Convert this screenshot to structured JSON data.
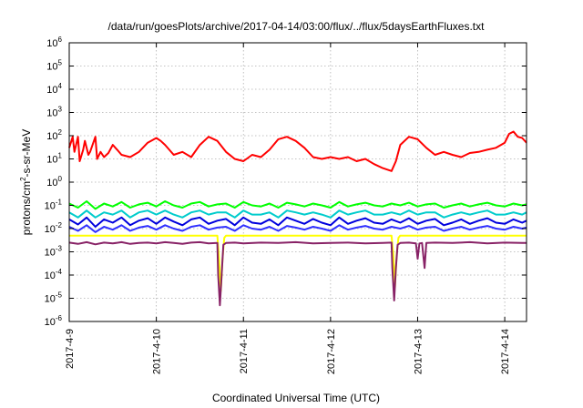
{
  "chart_data": {
    "type": "line",
    "title": "/data/run/goesPlots/archive/2017-04-14/03:00/flux/../flux/5daysEarthFluxes.txt",
    "xlabel": "Coordinated Universal Time (UTC)",
    "ylabel": {
      "prefix": "protons/cm",
      "sup": "2",
      "suffix": "-s-sr-MeV"
    },
    "x_ticks": [
      "2017-4-9",
      "2017-4-10",
      "2017-4-11",
      "2017-4-12",
      "2017-4-13",
      "2017-4-14"
    ],
    "x_range_days": [
      0,
      5.25
    ],
    "y_scale": "log",
    "ylim": [
      1e-06,
      1000000.0
    ],
    "y_ticks": [
      {
        "base": "10",
        "exp": "-6"
      },
      {
        "base": "10",
        "exp": "-5"
      },
      {
        "base": "10",
        "exp": "-4"
      },
      {
        "base": "10",
        "exp": "-3"
      },
      {
        "base": "10",
        "exp": "-2"
      },
      {
        "base": "10",
        "exp": "-1"
      },
      {
        "base": "10",
        "exp": "0"
      },
      {
        "base": "10",
        "exp": "1"
      },
      {
        "base": "10",
        "exp": "2"
      },
      {
        "base": "10",
        "exp": "3"
      },
      {
        "base": "10",
        "exp": "4"
      },
      {
        "base": "10",
        "exp": "5"
      },
      {
        "base": "10",
        "exp": "6"
      }
    ],
    "grid": true,
    "series": [
      {
        "color": "#ff0000",
        "x": [
          0.0,
          0.04,
          0.06,
          0.1,
          0.12,
          0.16,
          0.18,
          0.22,
          0.24,
          0.3,
          0.32,
          0.36,
          0.4,
          0.45,
          0.5,
          0.55,
          0.6,
          0.7,
          0.8,
          0.9,
          1.0,
          1.05,
          1.1,
          1.2,
          1.3,
          1.4,
          1.5,
          1.6,
          1.7,
          1.8,
          1.9,
          2.0,
          2.1,
          2.2,
          2.3,
          2.4,
          2.5,
          2.6,
          2.7,
          2.8,
          2.9,
          3.0,
          3.1,
          3.2,
          3.3,
          3.4,
          3.5,
          3.6,
          3.7,
          3.75,
          3.8,
          3.9,
          4.0,
          4.1,
          4.2,
          4.3,
          4.4,
          4.5,
          4.6,
          4.7,
          4.8,
          4.9,
          5.0,
          5.05,
          5.1,
          5.15,
          5.2,
          5.25
        ],
        "y": [
          30,
          90,
          20,
          90,
          8,
          25,
          60,
          15,
          20,
          90,
          10,
          20,
          12,
          18,
          40,
          25,
          15,
          12,
          20,
          50,
          80,
          60,
          40,
          15,
          20,
          12,
          40,
          90,
          60,
          20,
          10,
          8,
          15,
          12,
          25,
          70,
          90,
          60,
          30,
          12,
          10,
          12,
          10,
          12,
          8,
          10,
          6,
          4,
          3,
          8,
          40,
          90,
          70,
          30,
          15,
          20,
          15,
          12,
          18,
          20,
          25,
          30,
          50,
          120,
          150,
          90,
          80,
          50
        ]
      },
      {
        "color": "#00ff00",
        "x": [
          0.0,
          0.1,
          0.2,
          0.3,
          0.4,
          0.5,
          0.6,
          0.7,
          0.8,
          0.9,
          1.0,
          1.1,
          1.2,
          1.3,
          1.4,
          1.5,
          1.6,
          1.7,
          1.8,
          1.9,
          2.0,
          2.1,
          2.2,
          2.3,
          2.4,
          2.5,
          2.6,
          2.7,
          2.8,
          2.9,
          3.0,
          3.1,
          3.2,
          3.3,
          3.4,
          3.5,
          3.6,
          3.7,
          3.8,
          3.9,
          4.0,
          4.1,
          4.2,
          4.3,
          4.4,
          4.5,
          4.6,
          4.7,
          4.8,
          4.9,
          5.0,
          5.1,
          5.2,
          5.25
        ],
        "y": [
          0.12,
          0.08,
          0.15,
          0.07,
          0.12,
          0.09,
          0.14,
          0.08,
          0.11,
          0.13,
          0.09,
          0.15,
          0.1,
          0.08,
          0.12,
          0.14,
          0.09,
          0.11,
          0.12,
          0.08,
          0.14,
          0.1,
          0.09,
          0.12,
          0.08,
          0.13,
          0.11,
          0.09,
          0.12,
          0.1,
          0.08,
          0.14,
          0.09,
          0.11,
          0.13,
          0.1,
          0.09,
          0.12,
          0.1,
          0.13,
          0.09,
          0.11,
          0.12,
          0.08,
          0.1,
          0.12,
          0.09,
          0.11,
          0.13,
          0.1,
          0.09,
          0.12,
          0.1,
          0.11
        ]
      },
      {
        "color": "#00cccc",
        "x": [
          0.0,
          0.1,
          0.2,
          0.3,
          0.4,
          0.5,
          0.6,
          0.7,
          0.8,
          0.9,
          1.0,
          1.1,
          1.2,
          1.3,
          1.4,
          1.5,
          1.6,
          1.7,
          1.8,
          1.9,
          2.0,
          2.1,
          2.2,
          2.3,
          2.4,
          2.5,
          2.6,
          2.7,
          2.8,
          2.9,
          3.0,
          3.1,
          3.2,
          3.3,
          3.4,
          3.5,
          3.6,
          3.7,
          3.8,
          3.9,
          4.0,
          4.1,
          4.2,
          4.3,
          4.4,
          4.5,
          4.6,
          4.7,
          4.8,
          4.9,
          5.0,
          5.1,
          5.2,
          5.25
        ],
        "y": [
          0.05,
          0.03,
          0.06,
          0.03,
          0.05,
          0.04,
          0.06,
          0.03,
          0.05,
          0.06,
          0.04,
          0.06,
          0.04,
          0.03,
          0.05,
          0.06,
          0.04,
          0.05,
          0.05,
          0.03,
          0.06,
          0.04,
          0.04,
          0.05,
          0.03,
          0.06,
          0.05,
          0.04,
          0.05,
          0.04,
          0.03,
          0.06,
          0.04,
          0.05,
          0.06,
          0.04,
          0.04,
          0.05,
          0.04,
          0.06,
          0.04,
          0.05,
          0.05,
          0.03,
          0.04,
          0.05,
          0.04,
          0.05,
          0.06,
          0.04,
          0.04,
          0.05,
          0.04,
          0.05
        ]
      },
      {
        "color": "#0000dd",
        "x": [
          0.0,
          0.1,
          0.2,
          0.3,
          0.4,
          0.5,
          0.6,
          0.7,
          0.8,
          0.9,
          1.0,
          1.1,
          1.2,
          1.3,
          1.4,
          1.5,
          1.6,
          1.7,
          1.8,
          1.9,
          2.0,
          2.1,
          2.2,
          2.3,
          2.4,
          2.5,
          2.6,
          2.7,
          2.8,
          2.9,
          3.0,
          3.1,
          3.2,
          3.3,
          3.4,
          3.5,
          3.6,
          3.7,
          3.8,
          3.9,
          4.0,
          4.1,
          4.2,
          4.3,
          4.4,
          4.5,
          4.6,
          4.7,
          4.8,
          4.9,
          5.0,
          5.1,
          5.2,
          5.25
        ],
        "y": [
          0.025,
          0.015,
          0.03,
          0.012,
          0.025,
          0.018,
          0.03,
          0.014,
          0.022,
          0.028,
          0.016,
          0.03,
          0.02,
          0.014,
          0.025,
          0.03,
          0.016,
          0.022,
          0.026,
          0.014,
          0.03,
          0.018,
          0.016,
          0.025,
          0.014,
          0.03,
          0.022,
          0.016,
          0.026,
          0.018,
          0.014,
          0.03,
          0.016,
          0.022,
          0.028,
          0.018,
          0.016,
          0.025,
          0.018,
          0.028,
          0.016,
          0.022,
          0.026,
          0.014,
          0.018,
          0.025,
          0.016,
          0.022,
          0.028,
          0.018,
          0.016,
          0.025,
          0.018,
          0.022
        ]
      },
      {
        "color": "#3030ff",
        "x": [
          0.0,
          0.1,
          0.2,
          0.3,
          0.4,
          0.5,
          0.6,
          0.7,
          0.8,
          0.9,
          1.0,
          1.1,
          1.2,
          1.3,
          1.4,
          1.5,
          1.6,
          1.7,
          1.8,
          1.9,
          2.0,
          2.1,
          2.2,
          2.3,
          2.4,
          2.5,
          2.6,
          2.7,
          2.8,
          2.9,
          3.0,
          3.1,
          3.2,
          3.3,
          3.4,
          3.5,
          3.6,
          3.7,
          3.8,
          3.9,
          4.0,
          4.1,
          4.2,
          4.3,
          4.4,
          4.5,
          4.6,
          4.7,
          4.8,
          4.9,
          5.0,
          5.1,
          5.2,
          5.25
        ],
        "y": [
          0.012,
          0.008,
          0.014,
          0.007,
          0.012,
          0.009,
          0.014,
          0.008,
          0.011,
          0.013,
          0.009,
          0.014,
          0.01,
          0.008,
          0.012,
          0.014,
          0.009,
          0.011,
          0.012,
          0.008,
          0.014,
          0.01,
          0.009,
          0.012,
          0.008,
          0.013,
          0.011,
          0.009,
          0.012,
          0.01,
          0.008,
          0.014,
          0.009,
          0.011,
          0.013,
          0.01,
          0.009,
          0.012,
          0.01,
          0.013,
          0.009,
          0.011,
          0.012,
          0.008,
          0.01,
          0.012,
          0.009,
          0.011,
          0.013,
          0.01,
          0.009,
          0.012,
          0.01,
          0.011
        ]
      },
      {
        "color": "#ffff00",
        "x": [
          0.0,
          0.2,
          0.4,
          0.6,
          0.8,
          1.0,
          1.2,
          1.4,
          1.6,
          1.7,
          1.72,
          1.74,
          1.76,
          1.78,
          1.8,
          2.0,
          2.2,
          2.4,
          2.6,
          2.8,
          3.0,
          3.2,
          3.4,
          3.6,
          3.7,
          3.72,
          3.74,
          3.76,
          3.78,
          3.8,
          4.0,
          4.2,
          4.4,
          4.6,
          4.8,
          5.0,
          5.2,
          5.25
        ],
        "y": [
          0.005,
          0.005,
          0.005,
          0.005,
          0.005,
          0.005,
          0.005,
          0.005,
          0.005,
          0.005,
          0.0005,
          2e-05,
          0.0005,
          0.004,
          0.005,
          0.005,
          0.005,
          0.005,
          0.005,
          0.005,
          0.005,
          0.005,
          0.005,
          0.005,
          0.005,
          0.0008,
          3e-05,
          0.0008,
          0.004,
          0.005,
          0.005,
          0.005,
          0.005,
          0.005,
          0.005,
          0.005,
          0.005,
          0.005
        ]
      },
      {
        "color": "#882266",
        "x": [
          0.0,
          0.1,
          0.2,
          0.3,
          0.4,
          0.5,
          0.6,
          0.7,
          0.8,
          0.9,
          1.0,
          1.1,
          1.2,
          1.3,
          1.4,
          1.5,
          1.6,
          1.7,
          1.71,
          1.73,
          1.75,
          1.77,
          1.8,
          1.9,
          2.0,
          2.2,
          2.4,
          2.6,
          2.8,
          3.0,
          3.2,
          3.4,
          3.6,
          3.7,
          3.71,
          3.73,
          3.75,
          3.77,
          3.8,
          3.9,
          3.98,
          4.0,
          4.02,
          4.05,
          4.08,
          4.1,
          4.2,
          4.4,
          4.6,
          4.8,
          5.0,
          5.2,
          5.25
        ],
        "y": [
          0.0025,
          0.0022,
          0.0026,
          0.0021,
          0.0025,
          0.0023,
          0.0026,
          0.0022,
          0.0024,
          0.0025,
          0.0023,
          0.0026,
          0.0024,
          0.0022,
          0.0025,
          0.0026,
          0.0023,
          0.0024,
          0.0001,
          5e-06,
          0.0001,
          0.002,
          0.0024,
          0.0025,
          0.0023,
          0.0025,
          0.0024,
          0.0026,
          0.0023,
          0.0024,
          0.0025,
          0.0023,
          0.0024,
          0.0025,
          0.0002,
          8e-06,
          0.0002,
          0.002,
          0.0024,
          0.0025,
          0.0023,
          0.0005,
          0.0023,
          0.0024,
          0.0002,
          0.0024,
          0.0025,
          0.0024,
          0.0026,
          0.0023,
          0.0025,
          0.0024,
          0.0024
        ]
      }
    ]
  }
}
